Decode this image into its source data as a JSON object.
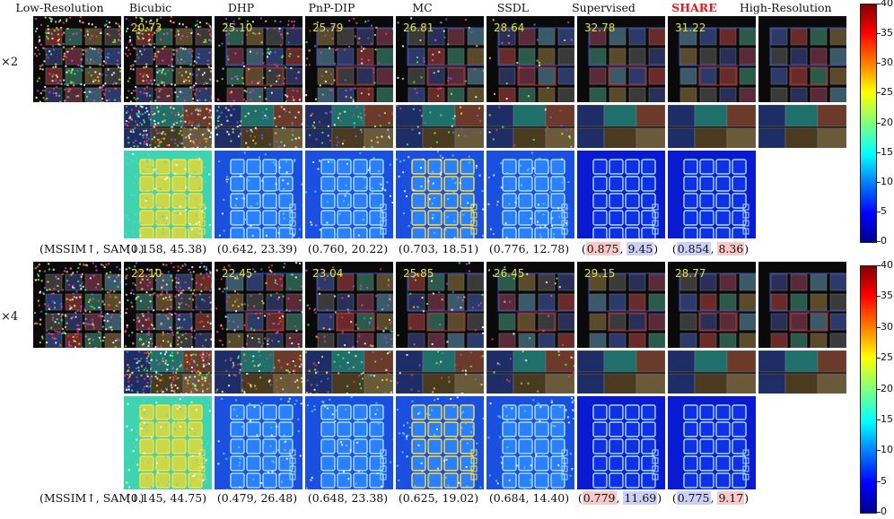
{
  "columns": [
    "Low-Resolution",
    "Bicubic",
    "DHP",
    "PnP-DIP",
    "MC",
    "SSDL",
    "Supervised",
    "SHARE",
    "High-Resolution"
  ],
  "scales": [
    "×2",
    "×4"
  ],
  "metric_label": "(MSSIM↑, SAM↓)",
  "x2": {
    "psnr": [
      "20.73",
      "25.10",
      "25.79",
      "26.81",
      "28.64",
      "32.78",
      "31.22"
    ],
    "mssim": [
      "0.158",
      "0.642",
      "0.760",
      "0.703",
      "0.776",
      "0.875",
      "0.854"
    ],
    "sam": [
      "45.38",
      "23.39",
      "20.22",
      "18.51",
      "12.78",
      "9.45",
      "8.36"
    ]
  },
  "x4": {
    "psnr": [
      "22.10",
      "22.45",
      "23.04",
      "25.85",
      "26.45",
      "29.15",
      "28.77"
    ],
    "mssim": [
      "0.145",
      "0.479",
      "0.648",
      "0.625",
      "0.684",
      "0.779",
      "0.775"
    ],
    "sam": [
      "44.75",
      "26.48",
      "23.38",
      "19.02",
      "14.40",
      "11.69",
      "9.17"
    ]
  },
  "colorbar": {
    "ticks": [
      "0",
      "5",
      "10",
      "15",
      "20",
      "25",
      "30",
      "35",
      "40"
    ],
    "min": 0,
    "max": 40
  },
  "highlight_colors": {
    "best": "#f8c9c9",
    "second": "#cdd0f6"
  }
}
